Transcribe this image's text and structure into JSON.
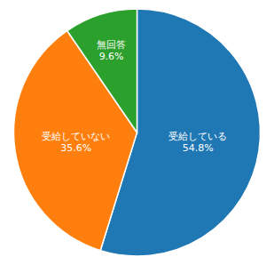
{
  "chart_data": {
    "type": "pie",
    "categories": [
      "受給している",
      "受給していない",
      "無回答"
    ],
    "values": [
      54.8,
      35.6,
      9.6
    ],
    "value_labels": [
      "54.8%",
      "35.6%",
      "9.6%"
    ],
    "data_labels": true
  }
}
